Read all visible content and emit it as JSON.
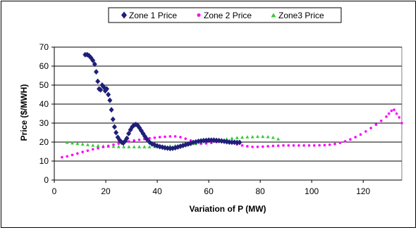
{
  "chart_data": {
    "type": "scatter",
    "title": "",
    "xlabel": "Variation of P (MW)",
    "ylabel": "Price ($/MWH)",
    "xlim": [
      0,
      135
    ],
    "ylim": [
      0,
      70
    ],
    "x_ticks": [
      "0",
      "20",
      "40",
      "60",
      "80",
      "100",
      "120"
    ],
    "y_ticks": [
      "0",
      "10",
      "20",
      "30",
      "40",
      "50",
      "60",
      "70"
    ],
    "grid": "horizontal",
    "legend_position": "top-center",
    "series": [
      {
        "name": "Zone 1 Price",
        "color": "#1f1f7a",
        "marker": "diamond",
        "points": [
          [
            12,
            66
          ],
          [
            12.8,
            66
          ],
          [
            13.5,
            65.5
          ],
          [
            14.2,
            64.5
          ],
          [
            15,
            63
          ],
          [
            15.7,
            61
          ],
          [
            16.3,
            57
          ],
          [
            16.9,
            52
          ],
          [
            17.4,
            48
          ],
          [
            18,
            47.5
          ],
          [
            18.6,
            50
          ],
          [
            19.2,
            49
          ],
          [
            19.8,
            47
          ],
          [
            20.4,
            48
          ],
          [
            21,
            45
          ],
          [
            21.6,
            42
          ],
          [
            22.2,
            37
          ],
          [
            22.8,
            32
          ],
          [
            23.4,
            28
          ],
          [
            24,
            25
          ],
          [
            24.7,
            22.5
          ],
          [
            25.4,
            21
          ],
          [
            26.1,
            20
          ],
          [
            26.8,
            19.5
          ],
          [
            27.5,
            20.5
          ],
          [
            28.2,
            22
          ],
          [
            28.9,
            24.5
          ],
          [
            29.6,
            26.5
          ],
          [
            30.3,
            28
          ],
          [
            31,
            29
          ],
          [
            31.7,
            29.3
          ],
          [
            32.4,
            28.8
          ],
          [
            33.1,
            27.5
          ],
          [
            33.8,
            26
          ],
          [
            34.5,
            24.5
          ],
          [
            35.2,
            23
          ],
          [
            36,
            21.5
          ],
          [
            37,
            20
          ],
          [
            38,
            19
          ],
          [
            39,
            18.5
          ],
          [
            40,
            18
          ],
          [
            41,
            17.6
          ],
          [
            42,
            17.3
          ],
          [
            43,
            17
          ],
          [
            44,
            16.8
          ],
          [
            45,
            16.6
          ],
          [
            46,
            16.7
          ],
          [
            47,
            17
          ],
          [
            48,
            17.4
          ],
          [
            49,
            17.8
          ],
          [
            50,
            18.2
          ],
          [
            51,
            18.6
          ],
          [
            52,
            19
          ],
          [
            53,
            19.4
          ],
          [
            54,
            19.8
          ],
          [
            55,
            20.1
          ],
          [
            56,
            20.4
          ],
          [
            57,
            20.6
          ],
          [
            58,
            20.8
          ],
          [
            59,
            20.9
          ],
          [
            60,
            21
          ],
          [
            61,
            21
          ],
          [
            62,
            21
          ],
          [
            63,
            20.9
          ],
          [
            64,
            20.8
          ],
          [
            65,
            20.6
          ],
          [
            66,
            20.4
          ],
          [
            67,
            20.2
          ],
          [
            68,
            20
          ],
          [
            69,
            19.9
          ],
          [
            70,
            19.9
          ],
          [
            71,
            19.8
          ],
          [
            72,
            19.8
          ]
        ]
      },
      {
        "name": "Zone 2 Price",
        "color": "#ff00ff",
        "marker": "circle",
        "points": [
          [
            3,
            12
          ],
          [
            5,
            12.5
          ],
          [
            7,
            13.2
          ],
          [
            9,
            14
          ],
          [
            11,
            14.8
          ],
          [
            13,
            15.5
          ],
          [
            15,
            16.2
          ],
          [
            17,
            16.8
          ],
          [
            19,
            17.4
          ],
          [
            21,
            18
          ],
          [
            23,
            18.6
          ],
          [
            25,
            19.2
          ],
          [
            27,
            19.8
          ],
          [
            29,
            20.3
          ],
          [
            31,
            20.8
          ],
          [
            33,
            21.2
          ],
          [
            35,
            21.6
          ],
          [
            37,
            22
          ],
          [
            39,
            22.3
          ],
          [
            41,
            22.6
          ],
          [
            43,
            22.8
          ],
          [
            45,
            23
          ],
          [
            47,
            23
          ],
          [
            49,
            22.6
          ],
          [
            51,
            21.8
          ],
          [
            53,
            20.8
          ],
          [
            55,
            19.8
          ],
          [
            57,
            19.2
          ],
          [
            59,
            19.3
          ],
          [
            61,
            19.6
          ],
          [
            63,
            20
          ],
          [
            65,
            20.3
          ],
          [
            67,
            20.2
          ],
          [
            69,
            19.5
          ],
          [
            71,
            18.8
          ],
          [
            73,
            18.2
          ],
          [
            75,
            17.8
          ],
          [
            77,
            17.5
          ],
          [
            79,
            17.5
          ],
          [
            81,
            17.6
          ],
          [
            83,
            17.8
          ],
          [
            85,
            18
          ],
          [
            87,
            18.1
          ],
          [
            89,
            18.2
          ],
          [
            91,
            18.2
          ],
          [
            93,
            18.2
          ],
          [
            95,
            18.2
          ],
          [
            97,
            18.2
          ],
          [
            99,
            18.2
          ],
          [
            101,
            18.2
          ],
          [
            103,
            18.3
          ],
          [
            105,
            18.4
          ],
          [
            107,
            18.6
          ],
          [
            109,
            19
          ],
          [
            111,
            19.6
          ],
          [
            113,
            20.4
          ],
          [
            115,
            21.4
          ],
          [
            117,
            22.6
          ],
          [
            119,
            24
          ],
          [
            121,
            25.6
          ],
          [
            123,
            27.4
          ],
          [
            125,
            29.2
          ],
          [
            127,
            31.2
          ],
          [
            129,
            33.4
          ],
          [
            130,
            35
          ],
          [
            131,
            36.5
          ],
          [
            132,
            37
          ],
          [
            133,
            35
          ],
          [
            134,
            33
          ],
          [
            135,
            30
          ]
        ]
      },
      {
        "name": "Zone3 Price",
        "color": "#33cc33",
        "marker": "triangle",
        "points": [
          [
            5,
            19.8
          ],
          [
            7,
            19.5
          ],
          [
            9,
            19.2
          ],
          [
            11,
            18.9
          ],
          [
            13,
            18.6
          ],
          [
            15,
            18.3
          ],
          [
            17,
            18.1
          ],
          [
            19,
            17.9
          ],
          [
            21,
            17.8
          ],
          [
            23,
            17.7
          ],
          [
            25,
            17.6
          ],
          [
            27,
            17.5
          ],
          [
            29,
            17.5
          ],
          [
            31,
            17.5
          ],
          [
            33,
            17.5
          ],
          [
            35,
            17.5
          ],
          [
            37,
            17.5
          ],
          [
            39,
            17.6
          ],
          [
            41,
            17.7
          ],
          [
            43,
            17.8
          ],
          [
            45,
            17.9
          ],
          [
            47,
            18.1
          ],
          [
            49,
            18.3
          ],
          [
            51,
            18.6
          ],
          [
            53,
            18.9
          ],
          [
            55,
            19.2
          ],
          [
            57,
            19.6
          ],
          [
            59,
            20
          ],
          [
            61,
            20.4
          ],
          [
            63,
            20.8
          ],
          [
            65,
            21.2
          ],
          [
            67,
            21.6
          ],
          [
            69,
            22
          ],
          [
            71,
            22.3
          ],
          [
            73,
            22.5
          ],
          [
            75,
            22.7
          ],
          [
            77,
            22.8
          ],
          [
            79,
            22.9
          ],
          [
            81,
            22.9
          ],
          [
            83,
            22.8
          ],
          [
            85,
            22.4
          ],
          [
            87,
            21.6
          ]
        ]
      }
    ]
  }
}
